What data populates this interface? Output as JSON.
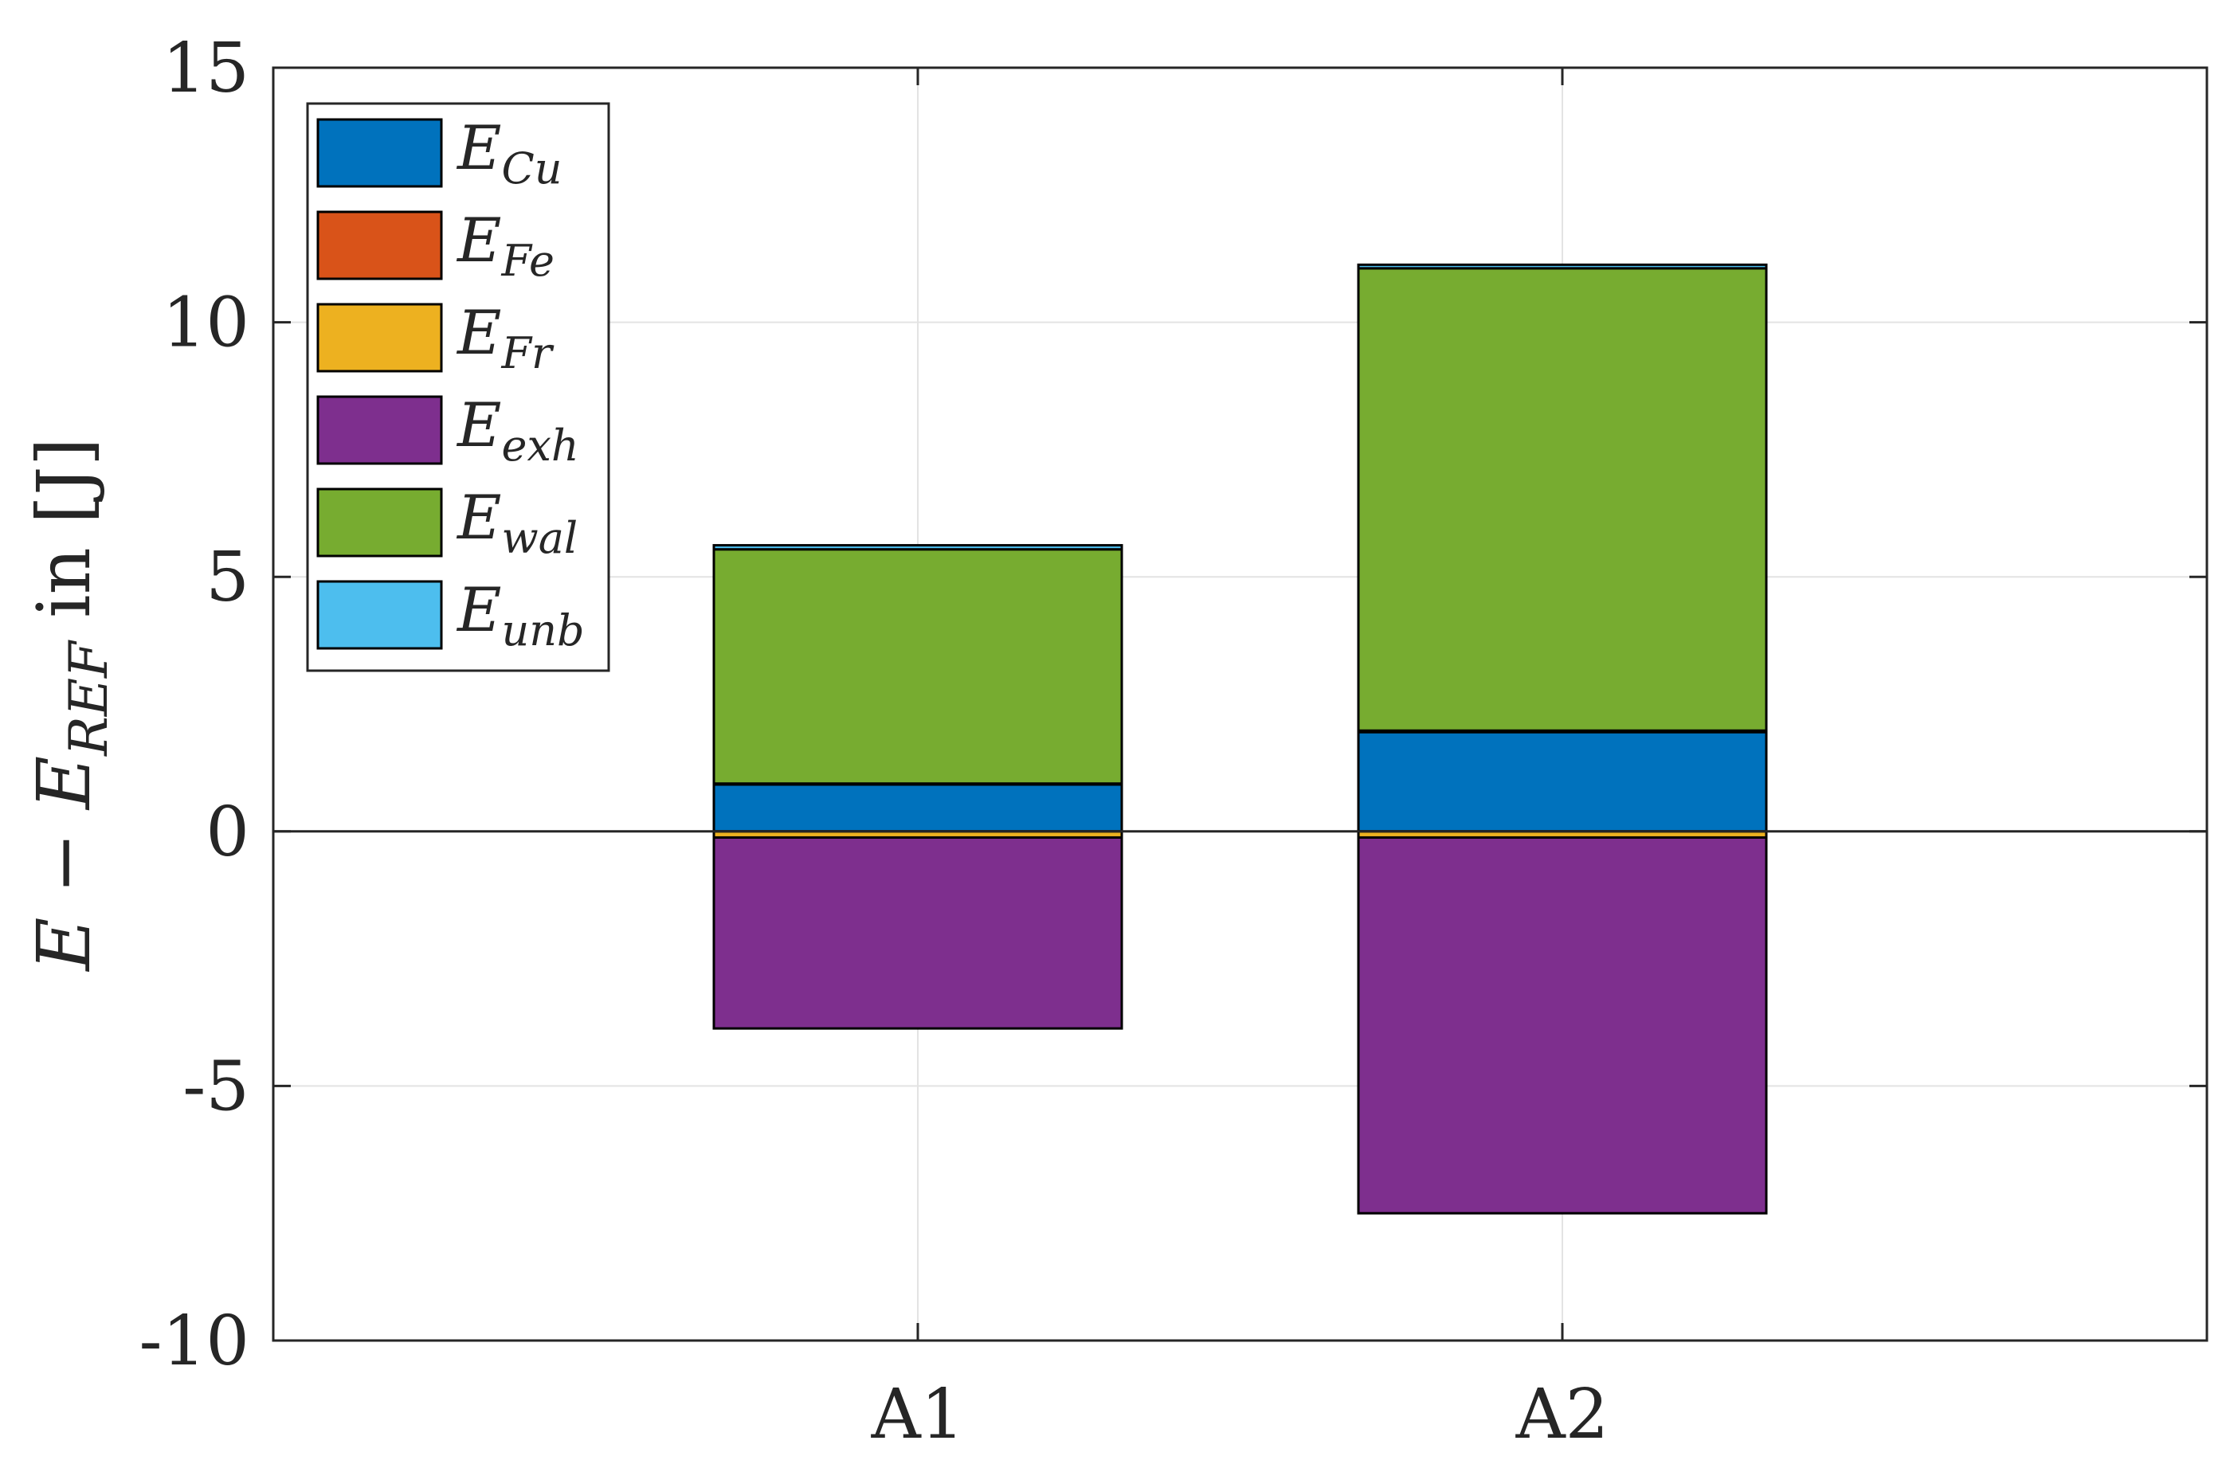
{
  "chart_data": {
    "type": "bar",
    "stacked": true,
    "categories": [
      "A1",
      "A2"
    ],
    "series": [
      {
        "name": "E",
        "subscript": "Cu",
        "color": "#0072BD",
        "values": [
          0.92,
          1.95
        ]
      },
      {
        "name": "E",
        "subscript": "Fe",
        "color": "#D95319",
        "values": [
          0.02,
          0.03
        ]
      },
      {
        "name": "E",
        "subscript": "Fr",
        "color": "#EDB120",
        "values": [
          -0.12,
          -0.12
        ]
      },
      {
        "name": "E",
        "subscript": "exh",
        "color": "#7E2F8E",
        "values": [
          -3.75,
          -7.38
        ]
      },
      {
        "name": "E",
        "subscript": "wal",
        "color": "#77AC30",
        "values": [
          4.6,
          9.08
        ]
      },
      {
        "name": "E",
        "subscript": "unb",
        "color": "#4DBEEE",
        "values": [
          0.08,
          0.07
        ]
      }
    ],
    "ylabel": {
      "main": "E − E",
      "subscript": "REF",
      "suffix": " in [J]"
    },
    "ylim": [
      -10,
      15
    ],
    "yticks": [
      -10,
      -5,
      0,
      5,
      10,
      15
    ],
    "ytick_labels": [
      "-10",
      "-5",
      "0",
      "5",
      "10",
      "15"
    ],
    "grid": true,
    "legend_position": "top-left"
  }
}
